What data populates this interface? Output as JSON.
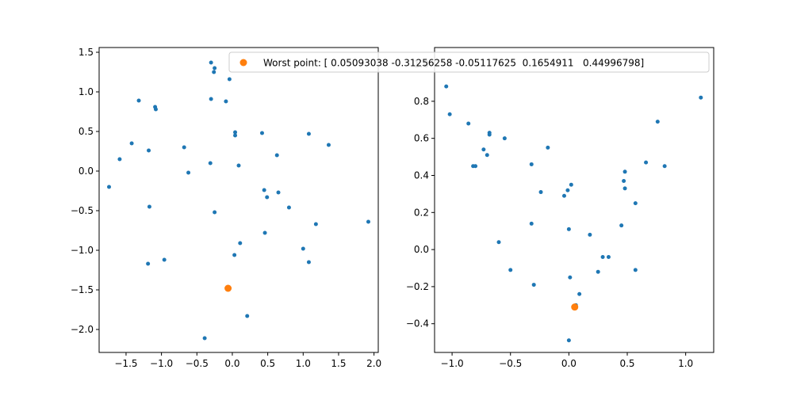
{
  "chart_data": [
    {
      "type": "scatter",
      "title": "",
      "xlabel": "",
      "ylabel": "",
      "xlim": [
        -1.88,
        2.06
      ],
      "ylim": [
        -2.29,
        1.56
      ],
      "xticks": [
        -1.5,
        -1.0,
        -0.5,
        0.0,
        0.5,
        1.0,
        1.5,
        2.0
      ],
      "xtick_labels": [
        "−1.5",
        "−1.0",
        "−0.5",
        "0.0",
        "0.5",
        "1.0",
        "1.5",
        "2.0"
      ],
      "yticks": [
        -2.0,
        -1.5,
        -1.0,
        -0.5,
        0.0,
        0.5,
        1.0,
        1.5
      ],
      "ytick_labels": [
        "−2.0",
        "−1.5",
        "−1.0",
        "−0.5",
        "0.0",
        "0.5",
        "1.0",
        "1.5"
      ],
      "grid": false,
      "series": [
        {
          "color": "#1f77b4",
          "points": [
            [
              -0.3,
              1.37
            ],
            [
              -0.25,
              1.3
            ],
            [
              -0.26,
              1.25
            ],
            [
              -0.04,
              1.16
            ],
            [
              -1.32,
              0.89
            ],
            [
              -1.09,
              0.81
            ],
            [
              -1.08,
              0.78
            ],
            [
              -0.3,
              0.91
            ],
            [
              -0.09,
              0.88
            ],
            [
              0.04,
              0.49
            ],
            [
              0.04,
              0.45
            ],
            [
              0.42,
              0.48
            ],
            [
              1.08,
              0.47
            ],
            [
              1.36,
              0.33
            ],
            [
              -1.42,
              0.35
            ],
            [
              -1.59,
              0.15
            ],
            [
              -1.18,
              0.26
            ],
            [
              -0.68,
              0.3
            ],
            [
              0.63,
              0.2
            ],
            [
              -0.31,
              0.1
            ],
            [
              0.09,
              0.07
            ],
            [
              -0.62,
              -0.02
            ],
            [
              -1.74,
              -0.2
            ],
            [
              0.45,
              -0.24
            ],
            [
              0.49,
              -0.33
            ],
            [
              0.65,
              -0.27
            ],
            [
              0.8,
              -0.46
            ],
            [
              -1.17,
              -0.45
            ],
            [
              -0.25,
              -0.52
            ],
            [
              1.18,
              -0.67
            ],
            [
              1.92,
              -0.64
            ],
            [
              0.46,
              -0.78
            ],
            [
              0.11,
              -0.91
            ],
            [
              1.0,
              -0.98
            ],
            [
              0.03,
              -1.06
            ],
            [
              -0.96,
              -1.12
            ],
            [
              -1.19,
              -1.17
            ],
            [
              1.08,
              -1.15
            ],
            [
              0.21,
              -1.83
            ],
            [
              -0.39,
              -2.11
            ]
          ]
        },
        {
          "name": "Worst point: [ 0.05093038 -0.31256258 -0.05117625  0.1654911   0.44996798]",
          "color": "#ff7f0e",
          "points": [
            [
              -0.06,
              -1.48
            ]
          ]
        }
      ],
      "legend": {
        "placement": "upper-center",
        "entries": [
          "Worst point: [ 0.05093038 -0.31256258 -0.05117625  0.1654911   0.44996798]"
        ]
      }
    },
    {
      "type": "scatter",
      "title": "",
      "xlabel": "",
      "ylabel": "",
      "xlim": [
        -1.15,
        1.24
      ],
      "ylim": [
        -0.555,
        1.09
      ],
      "xticks": [
        -1.0,
        -0.5,
        0.0,
        0.5,
        1.0
      ],
      "xtick_labels": [
        "−1.0",
        "−0.5",
        "0.0",
        "0.5",
        "1.0"
      ],
      "yticks": [
        -0.4,
        -0.2,
        0.0,
        0.2,
        0.4,
        0.6,
        0.8,
        1.0
      ],
      "ytick_labels": [
        "−0.4",
        "−0.2",
        "0.0",
        "0.2",
        "0.4",
        "0.6",
        "0.8",
        "1.0"
      ],
      "grid": false,
      "series": [
        {
          "color": "#1f77b4",
          "points": [
            [
              -1.05,
              0.88
            ],
            [
              -1.02,
              0.73
            ],
            [
              -0.86,
              0.68
            ],
            [
              -0.82,
              0.45
            ],
            [
              -0.8,
              0.45
            ],
            [
              -0.73,
              0.54
            ],
            [
              -0.7,
              0.51
            ],
            [
              -0.68,
              0.63
            ],
            [
              -0.68,
              0.62
            ],
            [
              -0.55,
              0.6
            ],
            [
              -0.18,
              0.55
            ],
            [
              -0.32,
              0.46
            ],
            [
              -0.24,
              0.31
            ],
            [
              0.02,
              0.35
            ],
            [
              -0.01,
              0.32
            ],
            [
              -0.04,
              0.29
            ],
            [
              -0.6,
              0.04
            ],
            [
              -0.32,
              0.14
            ],
            [
              0.0,
              0.11
            ],
            [
              0.18,
              0.08
            ],
            [
              -0.5,
              -0.11
            ],
            [
              -0.3,
              -0.19
            ],
            [
              0.29,
              -0.04
            ],
            [
              0.34,
              -0.04
            ],
            [
              0.25,
              -0.12
            ],
            [
              0.01,
              -0.15
            ],
            [
              0.09,
              -0.24
            ],
            [
              0.06,
              -0.3
            ],
            [
              0.0,
              -0.49
            ],
            [
              0.45,
              0.13
            ],
            [
              0.47,
              0.37
            ],
            [
              0.48,
              0.42
            ],
            [
              0.48,
              0.33
            ],
            [
              0.57,
              0.25
            ],
            [
              0.57,
              -0.11
            ],
            [
              0.66,
              0.47
            ],
            [
              0.76,
              0.69
            ],
            [
              0.82,
              0.45
            ],
            [
              1.13,
              0.82
            ]
          ]
        },
        {
          "name": "Worst point",
          "color": "#ff7f0e",
          "points": [
            [
              0.05,
              -0.31
            ]
          ]
        }
      ]
    }
  ]
}
